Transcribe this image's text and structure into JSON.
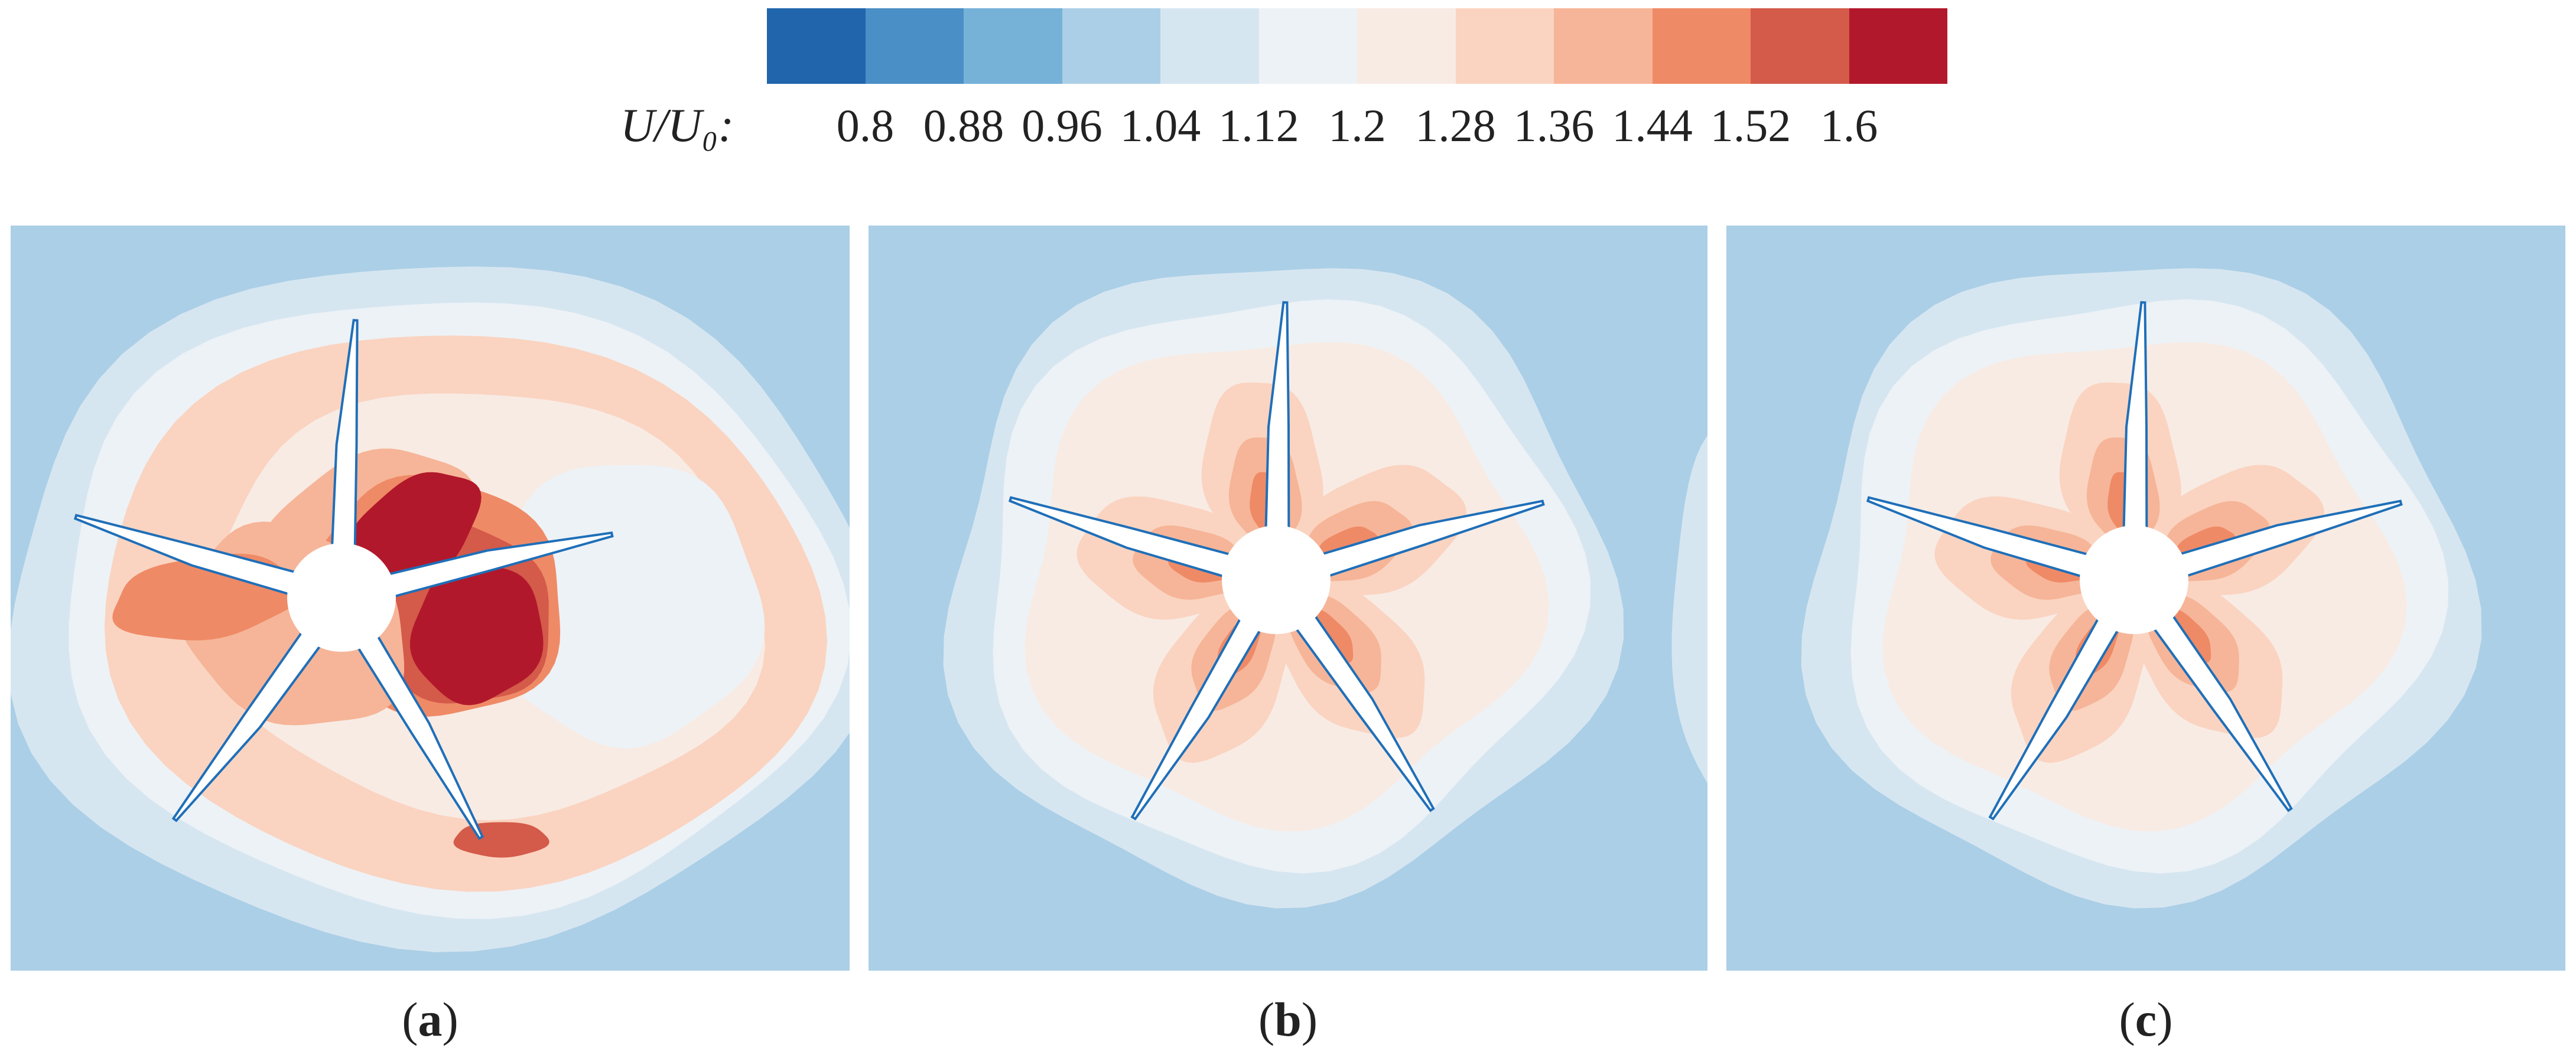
{
  "colorbar": {
    "label": "U/U₀:",
    "colors": [
      "#2166ac",
      "#4a8fc6",
      "#76b1d8",
      "#abcfe6",
      "#d6e6f1",
      "#edf2f6",
      "#f8ebe4",
      "#fad4c1",
      "#f6b598",
      "#ef8a66",
      "#d45a4a",
      "#b2182b"
    ],
    "ticks": [
      "0.8",
      "0.88",
      "0.96",
      "1.04",
      "1.12",
      "1.2",
      "1.28",
      "1.36",
      "1.44",
      "1.52",
      "1.6"
    ],
    "range": [
      0.8,
      1.6
    ]
  },
  "panels": [
    {
      "label": "a",
      "rotation": 8,
      "variant": "strong"
    },
    {
      "label": "b",
      "rotation": 0,
      "variant": "mild"
    },
    {
      "label": "c",
      "rotation": 0,
      "variant": "mild"
    }
  ],
  "background_color": "#abcfe6",
  "blade_color": "#1f6fb8"
}
